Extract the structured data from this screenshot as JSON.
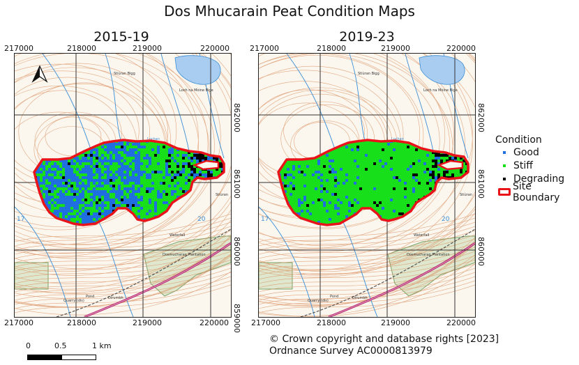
{
  "title": "Dos Mhucarain Peat Condition Maps",
  "panels": [
    {
      "title": "2015-19"
    },
    {
      "title": "2019-23"
    }
  ],
  "x_ticks": [
    "217000",
    "218000",
    "219000",
    "220000"
  ],
  "y_ticks": [
    "862000",
    "861000",
    "860000",
    "859000"
  ],
  "map_labels": {
    "loch_top": "Loch na Mòine Bige",
    "hill": "Stiùran Bigg",
    "hill2": "Stiùran",
    "plantation": "Dosmucharan Plantation",
    "grid_17": "17",
    "grid_20": "20",
    "waterfall": "Waterfall",
    "quarry": "Quarry (dis)",
    "pond": "Pond",
    "dirumbh": "Dirumbh",
    "loch_mid": "Lochan"
  },
  "legend": {
    "title": "Condition",
    "items": [
      {
        "label": "Good",
        "color": "#1f6fe0"
      },
      {
        "label": "Stiff",
        "color": "#17e01b"
      },
      {
        "label": "Degrading",
        "color": "#000000"
      },
      {
        "label": "Site Boundary",
        "color": "#e8141a"
      }
    ]
  },
  "scale": {
    "labels": [
      "0",
      "0.5",
      "1 km"
    ]
  },
  "copyright": {
    "line1": "© Crown copyright and database rights [2023]",
    "line2": "Ordnance Survey AC0000813979"
  }
}
